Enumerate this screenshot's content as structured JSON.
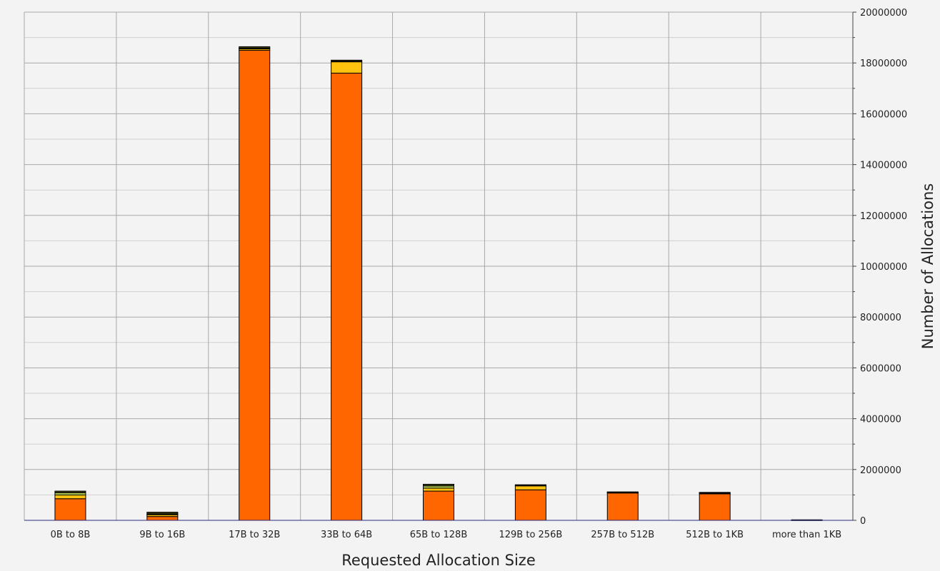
{
  "chart_data": {
    "type": "bar",
    "stacked": true,
    "title": "",
    "xlabel": "Requested Allocation Size",
    "ylabel": "Number of Allocations",
    "y_axis_side": "right",
    "grid": true,
    "legend": "none",
    "ylim": [
      0,
      20000000
    ],
    "y_ticks": [
      "0",
      "2000000",
      "4000000",
      "6000000",
      "8000000",
      "10000000",
      "12000000",
      "14000000",
      "16000000",
      "18000000",
      "20000000"
    ],
    "categories": [
      "0B to 8B",
      "9B to 16B",
      "17B to 32B",
      "33B to 64B",
      "65B to 128B",
      "129B to 256B",
      "257B to 512B",
      "512B to 1KB",
      "more than 1KB"
    ],
    "series": [
      {
        "color": "#ff6600",
        "values": [
          850000,
          150000,
          18500000,
          17600000,
          1150000,
          1200000,
          1080000,
          1040000,
          20000
        ]
      },
      {
        "color": "#ffc20e",
        "values": [
          150000,
          70000,
          60000,
          450000,
          120000,
          170000,
          20000,
          30000,
          0
        ]
      },
      {
        "color": "#c8e65a",
        "values": [
          80000,
          30000,
          20000,
          20000,
          80000,
          10000,
          10000,
          10000,
          0
        ]
      },
      {
        "color": "#3a3a10",
        "values": [
          70000,
          70000,
          60000,
          40000,
          70000,
          20000,
          10000,
          20000,
          0
        ]
      }
    ]
  }
}
